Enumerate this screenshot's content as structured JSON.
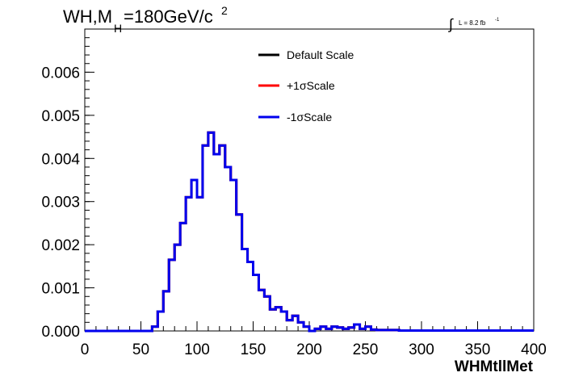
{
  "chart_data": {
    "type": "histogram",
    "title": {
      "prefix": "WH,M",
      "subscript": "H",
      "value": "=180GeV/c",
      "superscript": "2"
    },
    "lumi": {
      "integral": "∫",
      "text": "L = 8.2 fb",
      "superscript": "-1"
    },
    "xlabel": "WHMtllMet",
    "ylabel": "",
    "xlim": [
      0,
      400
    ],
    "ylim": [
      0,
      0.007
    ],
    "xticks": [
      "0",
      "50",
      "100",
      "150",
      "200",
      "250",
      "300",
      "350",
      "400"
    ],
    "yticks": [
      "0.000",
      "0.001",
      "0.002",
      "0.003",
      "0.004",
      "0.005",
      "0.006"
    ],
    "grid": false,
    "legend_position": "top-center",
    "bin_edges": [
      0,
      10,
      20,
      30,
      40,
      50,
      60,
      65,
      70,
      75,
      80,
      85,
      90,
      95,
      100,
      105,
      110,
      115,
      120,
      125,
      130,
      135,
      140,
      145,
      150,
      155,
      160,
      165,
      170,
      175,
      180,
      185,
      190,
      195,
      200,
      205,
      210,
      215,
      220,
      225,
      230,
      235,
      240,
      245,
      250,
      255,
      260,
      265,
      270,
      275,
      280,
      285,
      290,
      295,
      300,
      305,
      310,
      315,
      320,
      325,
      330,
      335,
      340,
      345,
      350,
      355,
      360,
      365,
      370,
      375,
      380,
      385,
      390,
      400
    ],
    "series": [
      {
        "name": "Default Scale",
        "color": "#000000",
        "values": [
          0,
          0,
          0,
          0,
          0,
          0,
          0.0001,
          0.00045,
          0.00092,
          0.00165,
          0.002,
          0.0025,
          0.0031,
          0.0035,
          0.0031,
          0.0043,
          0.0046,
          0.0041,
          0.0043,
          0.0038,
          0.0035,
          0.0027,
          0.0019,
          0.0016,
          0.0013,
          0.00095,
          0.0008,
          0.0005,
          0.00055,
          0.00045,
          0.00025,
          0.00035,
          0.0002,
          0.0001,
          0.0,
          5e-05,
          0.0001,
          5e-05,
          0.0001,
          8e-05,
          5e-05,
          8e-05,
          0.00015,
          5e-05,
          0.0001,
          3e-05,
          2e-05,
          2e-05,
          2e-05,
          2e-05,
          1e-05,
          1e-05,
          1e-05,
          1e-05,
          1e-05,
          1e-05,
          1e-05,
          1e-05,
          1e-05,
          1e-05,
          1e-05,
          1e-05,
          1e-05,
          1e-05,
          1e-05,
          1e-05,
          1e-05,
          1e-05,
          1e-05,
          1e-05,
          1e-05,
          1e-05,
          1e-05
        ]
      },
      {
        "name": "+1σScale",
        "color": "#ff0000",
        "values": [
          0,
          0,
          0,
          0,
          0,
          0,
          0.0001,
          0.00045,
          0.00092,
          0.00165,
          0.002,
          0.0025,
          0.0031,
          0.0035,
          0.0031,
          0.0043,
          0.0046,
          0.0041,
          0.0043,
          0.0038,
          0.0035,
          0.0027,
          0.0019,
          0.0016,
          0.0013,
          0.00095,
          0.0008,
          0.0005,
          0.00055,
          0.00045,
          0.00025,
          0.00035,
          0.0002,
          0.0001,
          0.0,
          5e-05,
          0.0001,
          5e-05,
          0.0001,
          8e-05,
          5e-05,
          8e-05,
          0.00015,
          5e-05,
          0.0001,
          3e-05,
          2e-05,
          2e-05,
          2e-05,
          2e-05,
          1e-05,
          1e-05,
          1e-05,
          1e-05,
          1e-05,
          1e-05,
          1e-05,
          1e-05,
          1e-05,
          1e-05,
          1e-05,
          1e-05,
          1e-05,
          1e-05,
          1e-05,
          1e-05,
          1e-05,
          1e-05,
          1e-05,
          1e-05,
          1e-05,
          1e-05,
          1e-05
        ]
      },
      {
        "name": "-1σScale",
        "color": "#0000ee",
        "values": [
          0,
          0,
          0,
          0,
          0,
          0,
          0.0001,
          0.00045,
          0.00092,
          0.00165,
          0.002,
          0.0025,
          0.0031,
          0.0035,
          0.0031,
          0.0043,
          0.0046,
          0.0041,
          0.0043,
          0.0038,
          0.0035,
          0.0027,
          0.0019,
          0.0016,
          0.0013,
          0.00095,
          0.0008,
          0.0005,
          0.00055,
          0.00045,
          0.00025,
          0.00035,
          0.0002,
          0.0001,
          0.0,
          5e-05,
          0.0001,
          5e-05,
          0.0001,
          8e-05,
          5e-05,
          8e-05,
          0.00015,
          5e-05,
          0.0001,
          3e-05,
          2e-05,
          2e-05,
          2e-05,
          2e-05,
          1e-05,
          1e-05,
          1e-05,
          1e-05,
          1e-05,
          1e-05,
          1e-05,
          1e-05,
          1e-05,
          1e-05,
          1e-05,
          1e-05,
          1e-05,
          1e-05,
          1e-05,
          1e-05,
          1e-05,
          1e-05,
          1e-05,
          1e-05,
          1e-05,
          1e-05,
          1e-05
        ]
      }
    ]
  }
}
